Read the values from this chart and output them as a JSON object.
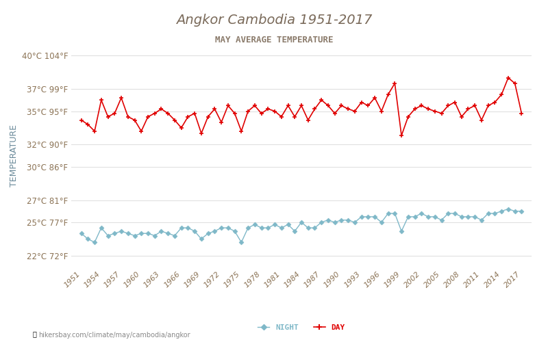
{
  "title": "Angkor Cambodia 1951-2017",
  "subtitle": "MAY AVERAGE TEMPERATURE",
  "ylabel": "TEMPERATURE",
  "xlabel_url": "hikersbay.com/climate/may/cambodia/angkor",
  "years": [
    1951,
    1952,
    1953,
    1954,
    1955,
    1956,
    1957,
    1958,
    1959,
    1960,
    1961,
    1962,
    1963,
    1964,
    1965,
    1966,
    1967,
    1968,
    1969,
    1970,
    1971,
    1972,
    1973,
    1974,
    1975,
    1976,
    1977,
    1978,
    1979,
    1980,
    1981,
    1982,
    1983,
    1984,
    1985,
    1986,
    1987,
    1988,
    1989,
    1990,
    1991,
    1992,
    1993,
    1994,
    1995,
    1996,
    1997,
    1998,
    1999,
    2000,
    2001,
    2002,
    2003,
    2004,
    2005,
    2006,
    2007,
    2008,
    2009,
    2010,
    2011,
    2012,
    2013,
    2014,
    2015,
    2016,
    2017
  ],
  "day_temps": [
    34.2,
    33.8,
    33.2,
    36.0,
    34.5,
    34.8,
    36.2,
    34.5,
    34.2,
    33.2,
    34.5,
    34.8,
    35.2,
    34.8,
    34.2,
    33.5,
    34.5,
    34.8,
    33.0,
    34.5,
    35.2,
    34.0,
    35.5,
    34.8,
    33.2,
    35.0,
    35.5,
    34.8,
    35.2,
    35.0,
    34.5,
    35.5,
    34.5,
    35.5,
    34.2,
    35.2,
    36.0,
    35.5,
    34.8,
    35.5,
    35.2,
    35.0,
    35.8,
    35.5,
    36.2,
    35.0,
    36.5,
    37.5,
    32.8,
    34.5,
    35.2,
    35.5,
    35.2,
    35.0,
    34.8,
    35.5,
    35.8,
    34.5,
    35.2,
    35.5,
    34.2,
    35.5,
    35.8,
    36.5,
    38.0,
    37.5,
    34.8
  ],
  "night_temps": [
    24.0,
    23.5,
    23.2,
    24.5,
    23.8,
    24.0,
    24.2,
    24.0,
    23.8,
    24.0,
    24.0,
    23.8,
    24.2,
    24.0,
    23.8,
    24.5,
    24.5,
    24.2,
    23.5,
    24.0,
    24.2,
    24.5,
    24.5,
    24.2,
    23.2,
    24.5,
    24.8,
    24.5,
    24.5,
    24.8,
    24.5,
    24.8,
    24.2,
    25.0,
    24.5,
    24.5,
    25.0,
    25.2,
    25.0,
    25.2,
    25.2,
    25.0,
    25.5,
    25.5,
    25.5,
    25.0,
    25.8,
    25.8,
    24.2,
    25.5,
    25.5,
    25.8,
    25.5,
    25.5,
    25.2,
    25.8,
    25.8,
    25.5,
    25.5,
    25.5,
    25.2,
    25.8,
    25.8,
    26.0,
    26.2,
    26.0,
    26.0
  ],
  "yticks_c": [
    22,
    25,
    27,
    30,
    32,
    35,
    37,
    40
  ],
  "yticks_f": [
    72,
    77,
    81,
    86,
    90,
    95,
    99,
    104
  ],
  "xtick_years": [
    1951,
    1954,
    1957,
    1960,
    1963,
    1966,
    1969,
    1972,
    1975,
    1978,
    1981,
    1984,
    1987,
    1990,
    1993,
    1996,
    1999,
    2002,
    2005,
    2008,
    2011,
    2014,
    2017
  ],
  "day_color": "#e00000",
  "night_color": "#7fb8c8",
  "title_color": "#7a6a5a",
  "subtitle_color": "#8a7a6a",
  "axis_color": "#8b7355",
  "grid_color": "#e0e0e0",
  "tick_color": "#8b7355",
  "ylabel_color": "#6a8a9a",
  "bg_color": "#ffffff",
  "legend_night": "NIGHT",
  "legend_day": "DAY"
}
